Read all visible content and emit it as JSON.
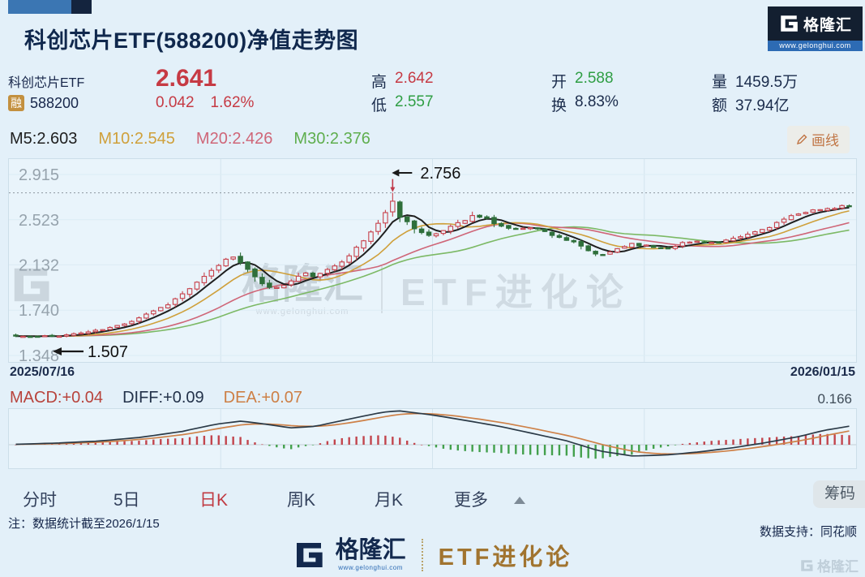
{
  "header": {
    "title": "科创芯片ETF(588200)净值走势图",
    "logo_brand": "格隆汇",
    "logo_url": "www.gelonghui.com"
  },
  "quote": {
    "name": "科创芯片ETF",
    "margin_badge": "融",
    "code": "588200",
    "price": "2.641",
    "change": "0.042",
    "change_pct": "1.62%",
    "stats": [
      {
        "label": "高",
        "value": "2.642",
        "color": "red"
      },
      {
        "label": "低",
        "value": "2.557",
        "color": "green"
      },
      {
        "label": "开",
        "value": "2.588",
        "color": "green"
      },
      {
        "label": "换",
        "value": "8.83%",
        "color": "dark"
      },
      {
        "label": "量",
        "value": "1459.5万",
        "color": "dark"
      },
      {
        "label": "额",
        "value": "37.94亿",
        "color": "dark"
      }
    ]
  },
  "ma_row": {
    "m5": "M5:2.603",
    "m10": "M10:2.545",
    "m20": "M20:2.426",
    "m30": "M30:2.376",
    "draw_button": "画线"
  },
  "chart_data": {
    "type": "candlestick",
    "title": "科创芯片ETF(588200)净值走势图",
    "x_start": "2025/07/16",
    "x_end": "2026/01/15",
    "y_ticks": [
      "2.915",
      "2.523",
      "2.132",
      "1.740",
      "1.348"
    ],
    "y_tick_values": [
      2.915,
      2.523,
      2.132,
      1.74,
      1.348
    ],
    "high_annotation": {
      "value": 2.756,
      "label": "2.756"
    },
    "low_annotation": {
      "value": 1.507,
      "label": "1.507"
    },
    "last_close": 2.641,
    "num_candles": 116,
    "peak_t": 0.452,
    "close_keypoints": [
      [
        0,
        1.515
      ],
      [
        0.02,
        1.51
      ],
      [
        0.04,
        1.515
      ],
      [
        0.06,
        1.525
      ],
      [
        0.08,
        1.545
      ],
      [
        0.1,
        1.565
      ],
      [
        0.12,
        1.6
      ],
      [
        0.14,
        1.65
      ],
      [
        0.16,
        1.72
      ],
      [
        0.18,
        1.78
      ],
      [
        0.2,
        1.88
      ],
      [
        0.22,
        1.99
      ],
      [
        0.235,
        2.08
      ],
      [
        0.25,
        2.17
      ],
      [
        0.26,
        2.21
      ],
      [
        0.27,
        2.16
      ],
      [
        0.285,
        2.03
      ],
      [
        0.3,
        1.95
      ],
      [
        0.315,
        1.93
      ],
      [
        0.33,
        1.99
      ],
      [
        0.345,
        2.06
      ],
      [
        0.36,
        2.03
      ],
      [
        0.375,
        2.09
      ],
      [
        0.39,
        2.16
      ],
      [
        0.405,
        2.25
      ],
      [
        0.42,
        2.36
      ],
      [
        0.435,
        2.5
      ],
      [
        0.445,
        2.6
      ],
      [
        0.452,
        2.68
      ],
      [
        0.46,
        2.56
      ],
      [
        0.47,
        2.5
      ],
      [
        0.485,
        2.42
      ],
      [
        0.5,
        2.37
      ],
      [
        0.515,
        2.44
      ],
      [
        0.53,
        2.5
      ],
      [
        0.55,
        2.56
      ],
      [
        0.565,
        2.53
      ],
      [
        0.58,
        2.47
      ],
      [
        0.6,
        2.44
      ],
      [
        0.615,
        2.47
      ],
      [
        0.63,
        2.43
      ],
      [
        0.65,
        2.38
      ],
      [
        0.67,
        2.32
      ],
      [
        0.69,
        2.24
      ],
      [
        0.705,
        2.21
      ],
      [
        0.72,
        2.27
      ],
      [
        0.74,
        2.32
      ],
      [
        0.76,
        2.29
      ],
      [
        0.78,
        2.28
      ],
      [
        0.8,
        2.32
      ],
      [
        0.82,
        2.34
      ],
      [
        0.84,
        2.32
      ],
      [
        0.86,
        2.35
      ],
      [
        0.88,
        2.4
      ],
      [
        0.9,
        2.45
      ],
      [
        0.92,
        2.52
      ],
      [
        0.94,
        2.57
      ],
      [
        0.955,
        2.62
      ],
      [
        0.97,
        2.6
      ],
      [
        0.985,
        2.63
      ],
      [
        1,
        2.641
      ]
    ],
    "ma_periods": [
      5,
      10,
      20,
      30
    ],
    "colors": {
      "up": "#c7414b",
      "down": "#2f6f3b",
      "m5": "#202020",
      "m10": "#cfa03b",
      "m20": "#cf6678",
      "m30": "#7cb965",
      "grid": "#d3e4ee",
      "tick_text": "#96a3ad",
      "high_line": "#8d979e"
    },
    "macd": {
      "label_macd": "MACD:+0.04",
      "label_diff": "DIFF:+0.09",
      "label_dea": "DEA:+0.07",
      "scale_max": "0.166",
      "scale_max_value": 0.166,
      "diff_keypoints": [
        [
          0,
          0.002
        ],
        [
          0.05,
          0.008
        ],
        [
          0.1,
          0.018
        ],
        [
          0.15,
          0.036
        ],
        [
          0.2,
          0.065
        ],
        [
          0.24,
          0.1
        ],
        [
          0.27,
          0.115
        ],
        [
          0.3,
          0.1
        ],
        [
          0.33,
          0.082
        ],
        [
          0.36,
          0.09
        ],
        [
          0.4,
          0.125
        ],
        [
          0.44,
          0.158
        ],
        [
          0.46,
          0.165
        ],
        [
          0.5,
          0.145
        ],
        [
          0.54,
          0.118
        ],
        [
          0.58,
          0.09
        ],
        [
          0.62,
          0.055
        ],
        [
          0.66,
          0.02
        ],
        [
          0.7,
          -0.03
        ],
        [
          0.74,
          -0.055
        ],
        [
          0.78,
          -0.05
        ],
        [
          0.82,
          -0.035
        ],
        [
          0.86,
          -0.015
        ],
        [
          0.9,
          0.01
        ],
        [
          0.94,
          0.04
        ],
        [
          0.97,
          0.07
        ],
        [
          1,
          0.09
        ]
      ],
      "colors": {
        "diff": "#2b3a47",
        "dea": "#ce8148",
        "pos": "#c2454d",
        "neg": "#43a04c"
      }
    }
  },
  "x_axis": {
    "start": "2025/07/16",
    "end": "2026/01/15"
  },
  "tabs": {
    "items": [
      {
        "label": "分时",
        "active": false
      },
      {
        "label": "5日",
        "active": false
      },
      {
        "label": "日K",
        "active": true
      },
      {
        "label": "周K",
        "active": false
      },
      {
        "label": "月K",
        "active": false
      }
    ],
    "more_label": "更多",
    "chips_button": "筹码"
  },
  "watermark": {
    "brand": "格隆汇",
    "url": "www.gelonghui.com",
    "right": "ETF进化论"
  },
  "note": "注：数据统计截至2026/1/15",
  "support": "数据支持：同花顺",
  "footer": {
    "brand": "格隆汇",
    "url": "www.gelonghui.com",
    "right": "ETF进化论"
  }
}
